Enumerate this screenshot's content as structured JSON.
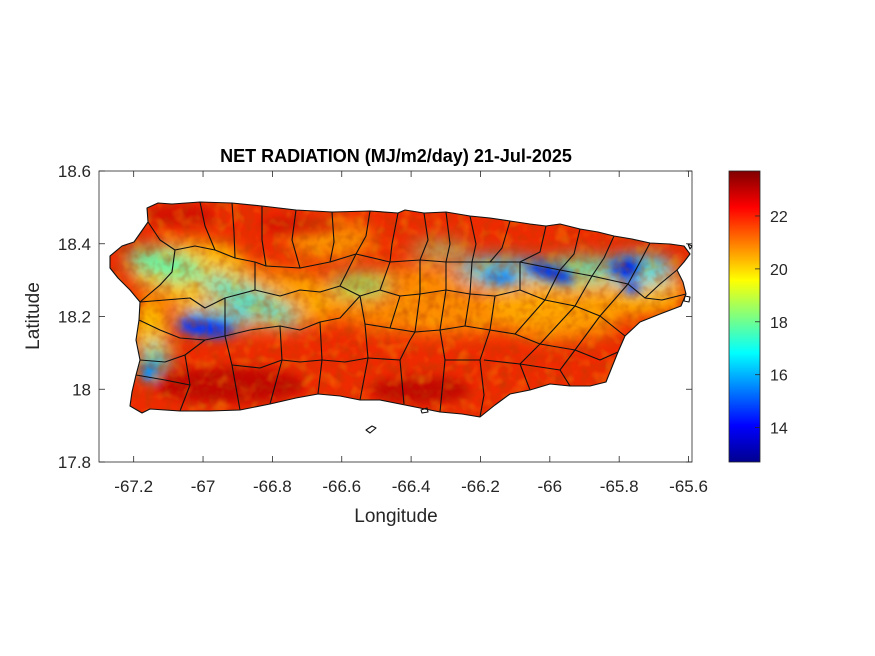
{
  "title": "NET RADIATION (MJ/m2/day) 21-Jul-2025",
  "chart_data": {
    "type": "heatmap",
    "title": "NET RADIATION (MJ/m2/day) 21-Jul-2025",
    "xlabel": "Longitude",
    "ylabel": "Latitude",
    "xlim": [
      -67.3,
      -65.59
    ],
    "ylim": [
      17.8,
      18.6
    ],
    "x_ticks": [
      "-67.2",
      "-67",
      "-66.8",
      "-66.6",
      "-66.4",
      "-66.2",
      "-66",
      "-65.8",
      "-65.6"
    ],
    "x_tick_values": [
      -67.2,
      -67.0,
      -66.8,
      -66.6,
      -66.4,
      -66.2,
      -66.0,
      -65.8,
      -65.6
    ],
    "y_ticks": [
      "18.6",
      "18.4",
      "18.2",
      "18",
      "17.8"
    ],
    "y_tick_values": [
      18.6,
      18.4,
      18.2,
      18.0,
      17.8
    ],
    "colorbar": {
      "colormap": "jet",
      "range": [
        12.7,
        23.7
      ],
      "ticks": [
        "22",
        "20",
        "18",
        "16",
        "14"
      ],
      "tick_values": [
        22,
        20,
        18,
        16,
        14
      ]
    },
    "grid": false,
    "region": "Puerto Rico",
    "low_value_zones": [
      {
        "lon": -66.98,
        "lat": 18.17,
        "value": 14
      },
      {
        "lon": -66.0,
        "lat": 18.33,
        "value": 14.5
      },
      {
        "lon": -65.78,
        "lat": 18.33,
        "value": 14.5
      },
      {
        "lon": -67.16,
        "lat": 18.06,
        "value": 16
      }
    ],
    "high_value_zones": [
      {
        "lon": -66.9,
        "lat": 17.98,
        "value": 23.5
      },
      {
        "lon": -66.3,
        "lat": 18.0,
        "value": 23.5
      },
      {
        "lon": -66.6,
        "lat": 18.42,
        "value": 23
      }
    ]
  }
}
